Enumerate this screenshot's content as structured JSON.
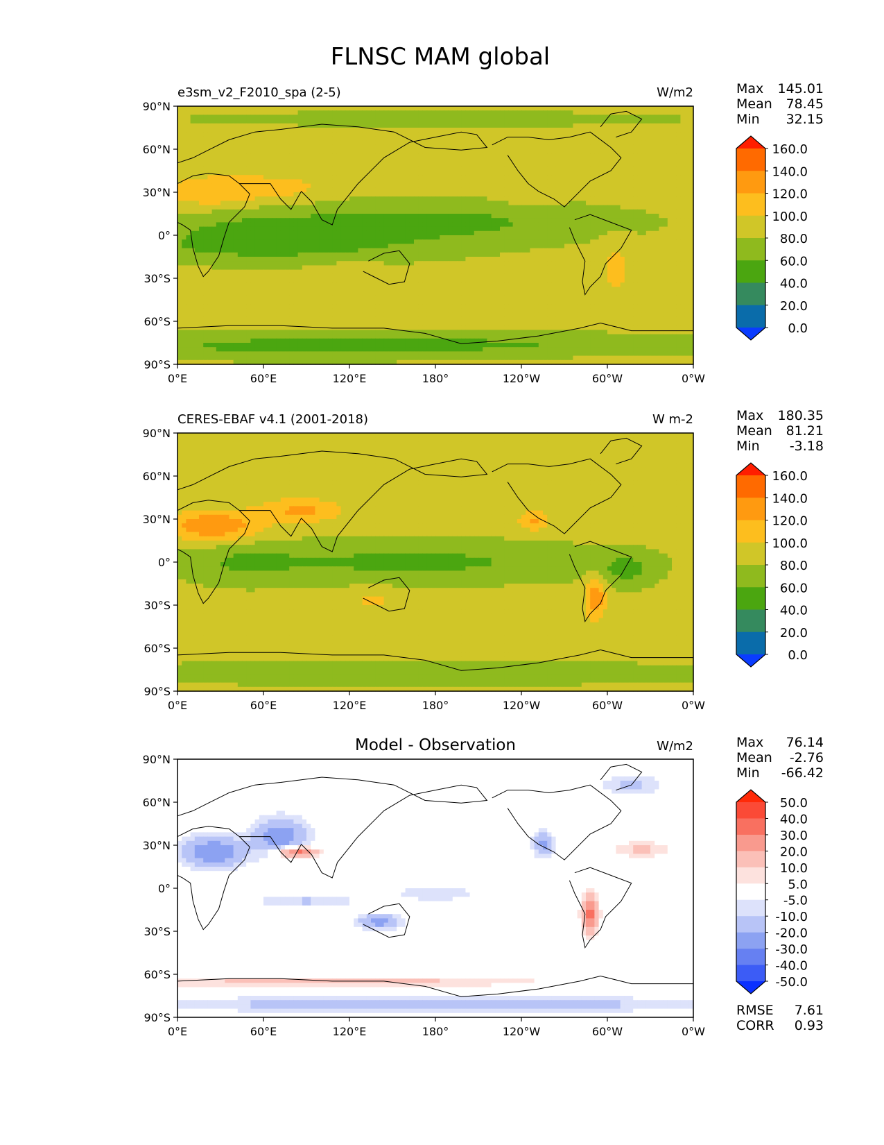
{
  "title": "FLNSC MAM global",
  "x_ticks": [
    "0°E",
    "60°E",
    "120°E",
    "180°",
    "120°W",
    "60°W",
    "0°W"
  ],
  "y_ticks": [
    "90°N",
    "60°N",
    "30°N",
    "0°",
    "30°S",
    "60°S",
    "90°S"
  ],
  "chart_data": [
    {
      "type": "heatmap",
      "name": "model",
      "label": "e3sm_v2_F2010_spa (2-5)",
      "units": "W/m2",
      "stats": [
        {
          "label": "Max",
          "value": "145.01"
        },
        {
          "label": "Mean",
          "value": "78.45"
        },
        {
          "label": "Min",
          "value": "32.15"
        }
      ],
      "colorbar": {
        "levels": [
          "160.0",
          "140.0",
          "120.0",
          "100.0",
          "80.0",
          "60.0",
          "40.0",
          "20.0",
          "0.0"
        ],
        "colors": [
          "#ff1e00",
          "#ff6a00",
          "#ff9a10",
          "#fdbe1e",
          "#d0c628",
          "#8fba1e",
          "#4ba610",
          "#358a5e",
          "#0a6caa",
          "#0a3cff"
        ]
      }
    },
    {
      "type": "heatmap",
      "name": "observation",
      "label": "CERES-EBAF v4.1 (2001-2018)",
      "units": "W m-2",
      "stats": [
        {
          "label": "Max",
          "value": "180.35"
        },
        {
          "label": "Mean",
          "value": "81.21"
        },
        {
          "label": "Min",
          "value": "-3.18"
        }
      ],
      "colorbar": {
        "levels": [
          "160.0",
          "140.0",
          "120.0",
          "100.0",
          "80.0",
          "60.0",
          "40.0",
          "20.0",
          "0.0"
        ],
        "colors": [
          "#ff1e00",
          "#ff6a00",
          "#ff9a10",
          "#fdbe1e",
          "#d0c628",
          "#8fba1e",
          "#4ba610",
          "#358a5e",
          "#0a6caa",
          "#0a3cff"
        ]
      }
    },
    {
      "type": "heatmap",
      "name": "difference",
      "title": "Model - Observation",
      "units": "W/m2",
      "stats": [
        {
          "label": "Max",
          "value": "76.14"
        },
        {
          "label": "Mean",
          "value": "-2.76"
        },
        {
          "label": "Min",
          "value": "-66.42"
        }
      ],
      "extra_stats": [
        {
          "label": "RMSE",
          "value": "7.61"
        },
        {
          "label": "CORR",
          "value": "0.93"
        }
      ],
      "colorbar": {
        "levels": [
          "50.0",
          "40.0",
          "30.0",
          "20.0",
          "10.0",
          "5.0",
          "-5.0",
          "-10.0",
          "-20.0",
          "-30.0",
          "-40.0",
          "-50.0"
        ],
        "colors": [
          "#ff2a08",
          "#fb4a36",
          "#f97060",
          "#f99a8e",
          "#fbc0b8",
          "#fde2de",
          "#ffffff",
          "#dde2fb",
          "#b8c4f7",
          "#8ca2f2",
          "#6680f2",
          "#3c5cf6",
          "#0a30ff"
        ]
      }
    }
  ]
}
